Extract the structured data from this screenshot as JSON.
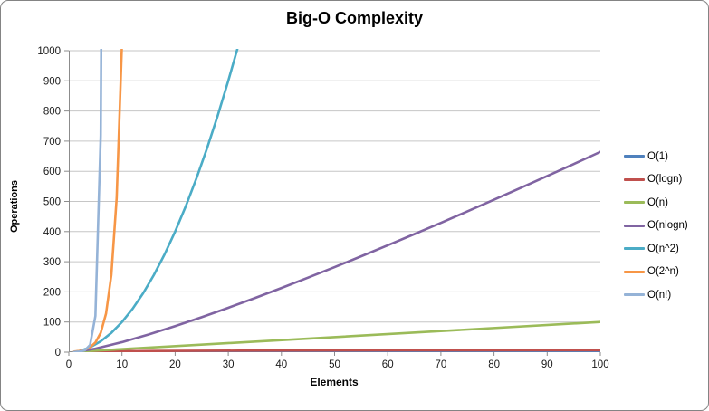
{
  "chart_data": {
    "type": "line",
    "title": "Big-O Complexity",
    "xlabel": "Elements",
    "ylabel": "Operations",
    "xlim": [
      0,
      100
    ],
    "ylim": [
      0,
      1000
    ],
    "xticks": [
      0,
      10,
      20,
      30,
      40,
      50,
      60,
      70,
      80,
      90,
      100
    ],
    "yticks": [
      0,
      100,
      200,
      300,
      400,
      500,
      600,
      700,
      800,
      900,
      1000
    ],
    "grid": "horizontal",
    "legend_position": "right",
    "colors": {
      "gridline": "#c6c6c6",
      "axis": "#8c8c8c",
      "text": "#1a1a1a"
    },
    "series": [
      {
        "name": "O(1)",
        "color": "#4F81BD",
        "points": [
          [
            1,
            1
          ],
          [
            100,
            1
          ]
        ]
      },
      {
        "name": "O(logn)",
        "color": "#C0504D",
        "points": [
          [
            1,
            0
          ],
          [
            2,
            1
          ],
          [
            4,
            2
          ],
          [
            8,
            3
          ],
          [
            16,
            4
          ],
          [
            32,
            5
          ],
          [
            64,
            6
          ],
          [
            100,
            6.64
          ]
        ]
      },
      {
        "name": "O(n)",
        "color": "#9BBB59",
        "points": [
          [
            1,
            1
          ],
          [
            100,
            100
          ]
        ]
      },
      {
        "name": "O(nlogn)",
        "color": "#8064A2",
        "points": [
          [
            1,
            0
          ],
          [
            5,
            11.6
          ],
          [
            10,
            33.2
          ],
          [
            15,
            58.6
          ],
          [
            20,
            86.4
          ],
          [
            25,
            116.1
          ],
          [
            30,
            147.2
          ],
          [
            35,
            179.5
          ],
          [
            40,
            212.9
          ],
          [
            45,
            247.1
          ],
          [
            50,
            282.2
          ],
          [
            55,
            318.0
          ],
          [
            60,
            354.4
          ],
          [
            65,
            391.5
          ],
          [
            70,
            429.0
          ],
          [
            75,
            467.1
          ],
          [
            80,
            505.8
          ],
          [
            85,
            544.8
          ],
          [
            90,
            584.3
          ],
          [
            95,
            624.2
          ],
          [
            100,
            664.4
          ]
        ]
      },
      {
        "name": "O(n^2)",
        "color": "#4BACC6",
        "points": [
          [
            1,
            1
          ],
          [
            2,
            4
          ],
          [
            4,
            16
          ],
          [
            6,
            36
          ],
          [
            8,
            64
          ],
          [
            10,
            100
          ],
          [
            12,
            144
          ],
          [
            14,
            196
          ],
          [
            16,
            256
          ],
          [
            18,
            324
          ],
          [
            20,
            400
          ],
          [
            22,
            484
          ],
          [
            24,
            576
          ],
          [
            26,
            676
          ],
          [
            28,
            784
          ],
          [
            30,
            900
          ],
          [
            32,
            1024
          ],
          [
            33,
            1089
          ]
        ]
      },
      {
        "name": "O(2^n)",
        "color": "#F79646",
        "points": [
          [
            1,
            2
          ],
          [
            2,
            4
          ],
          [
            3,
            8
          ],
          [
            4,
            16
          ],
          [
            5,
            32
          ],
          [
            6,
            64
          ],
          [
            7,
            128
          ],
          [
            8,
            256
          ],
          [
            9,
            512
          ],
          [
            10,
            1024
          ],
          [
            10.4,
            1350
          ]
        ]
      },
      {
        "name": "O(n!)",
        "color": "#95B3D7",
        "points": [
          [
            1,
            1
          ],
          [
            2,
            2
          ],
          [
            3,
            6
          ],
          [
            4,
            24
          ],
          [
            5,
            120
          ],
          [
            6,
            720
          ],
          [
            6.3,
            1700
          ],
          [
            7,
            5040
          ]
        ]
      }
    ]
  }
}
